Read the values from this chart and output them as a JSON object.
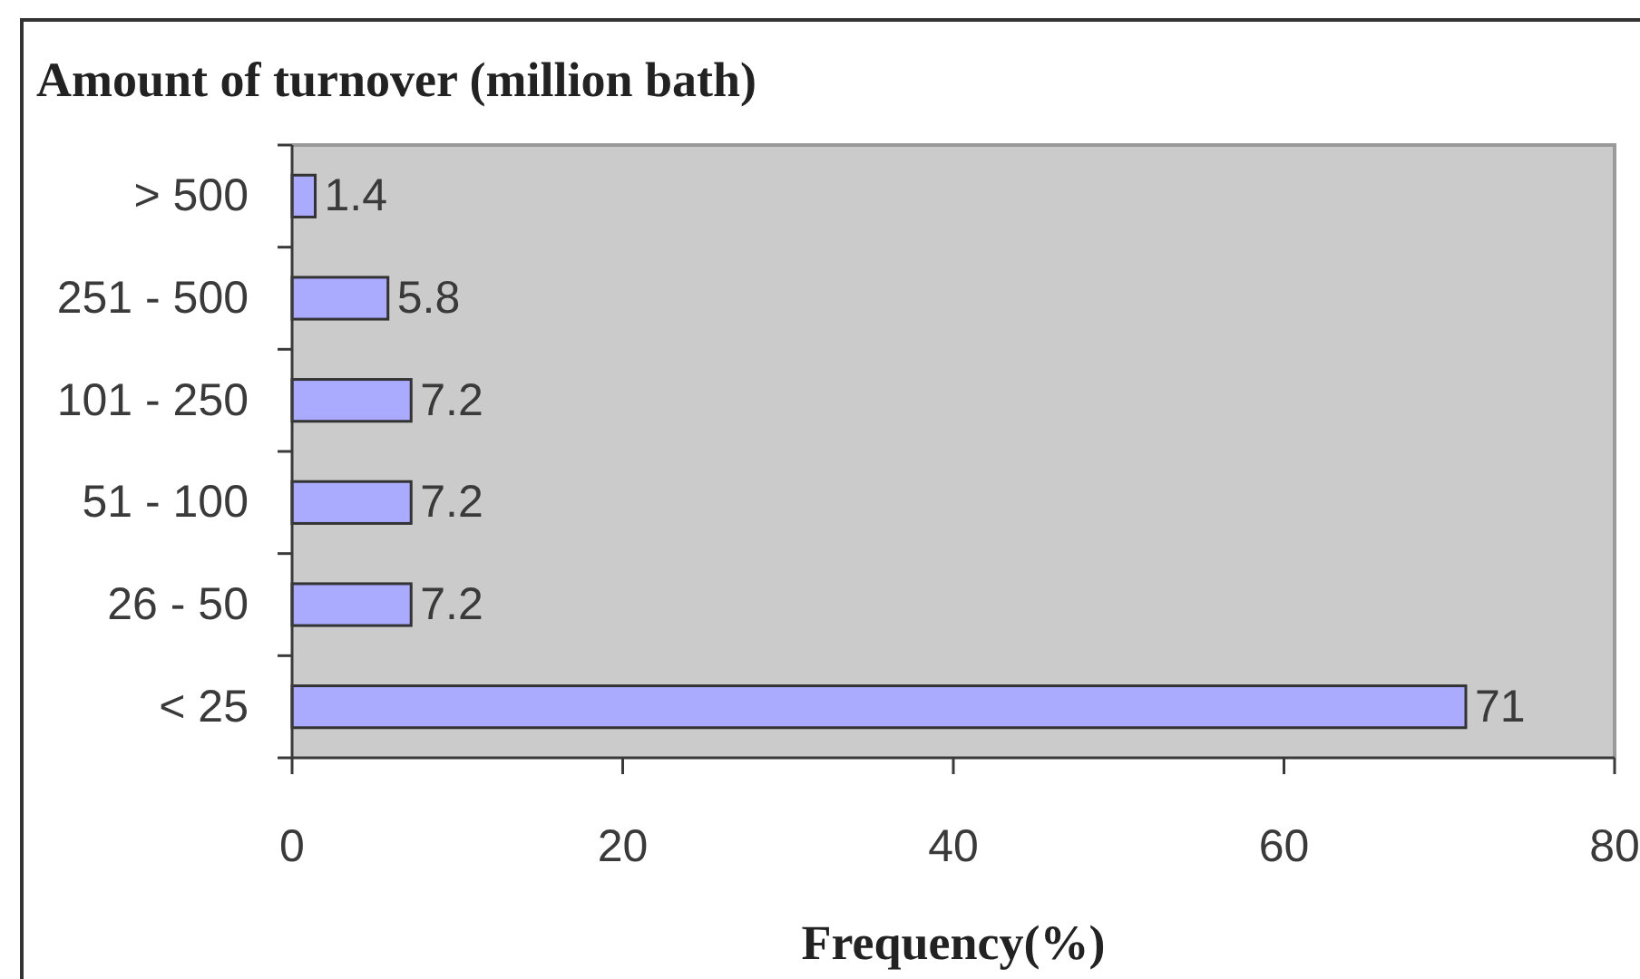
{
  "chart_data": {
    "type": "bar",
    "orientation": "horizontal",
    "title": "Amount of turnover (million bath)",
    "xlabel": "Frequency(%)",
    "categories": [
      "> 500",
      "251 - 500",
      "101 - 250",
      "51 - 100",
      "26 - 50",
      "< 25"
    ],
    "values": [
      1.4,
      5.8,
      7.2,
      7.2,
      7.2,
      71
    ],
    "color": "#aaaaff",
    "xlim": [
      0,
      80
    ],
    "xticks": [
      0,
      20,
      40,
      60,
      80
    ],
    "data_labels": true
  }
}
